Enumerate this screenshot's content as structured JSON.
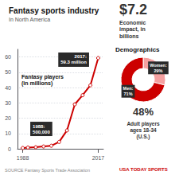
{
  "chart_data": [
    {
      "type": "line",
      "title": "Fantasy sports industry",
      "subtitle": "In North America",
      "ylabel": "Fantasy players\n(in millions)",
      "x": [
        1988,
        1990,
        1993,
        1996,
        1999,
        2002,
        2005,
        2008,
        2011,
        2014,
        2017
      ],
      "values": [
        0.5,
        0.8,
        1.0,
        1.5,
        2.0,
        4.5,
        12.0,
        29.0,
        35.0,
        41.5,
        59.3
      ],
      "color": "#cc0000",
      "marker": "circle",
      "xlim": [
        1986,
        2019
      ],
      "xticks": [
        1988,
        2017
      ],
      "ylim": [
        0,
        65
      ],
      "yticks": [
        0,
        10,
        20,
        30,
        40,
        50,
        60
      ],
      "grid": true,
      "annotations": [
        "1988:\n500,000",
        "2017:\n59.3 million",
        "SOURCE Fantasy Sports Trade Association",
        "USA TODAY SPORTS"
      ]
    },
    {
      "type": "pie",
      "title": "Demographics",
      "categories": [
        "Women",
        "Men"
      ],
      "values": [
        29,
        71
      ],
      "value_labels": [
        "Women:\n29%",
        "Men:\n71%"
      ],
      "data_labels": true,
      "colors": [
        "#f4a0a0",
        "#cc0000"
      ],
      "annotations": [
        "$7.2",
        "Economic\nimpact, in\nbillions",
        "48%",
        "Adult players\nages 18-34\n(U.S.)"
      ]
    }
  ]
}
